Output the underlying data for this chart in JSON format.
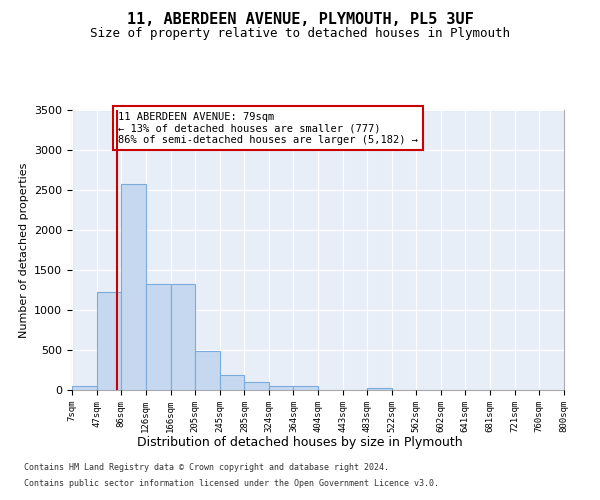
{
  "title": "11, ABERDEEN AVENUE, PLYMOUTH, PL5 3UF",
  "subtitle": "Size of property relative to detached houses in Plymouth",
  "xlabel": "Distribution of detached houses by size in Plymouth",
  "ylabel": "Number of detached properties",
  "bin_edges": [
    7,
    47,
    86,
    126,
    166,
    205,
    245,
    285,
    324,
    364,
    404,
    443,
    483,
    522,
    562,
    602,
    641,
    681,
    721,
    760,
    800
  ],
  "bar_heights": [
    50,
    1220,
    2570,
    1320,
    1320,
    490,
    185,
    100,
    50,
    50,
    0,
    0,
    30,
    0,
    0,
    0,
    0,
    0,
    0,
    0
  ],
  "bar_color": "#c5d8f0",
  "bar_edgecolor": "#7aabdb",
  "property_size": 79,
  "vline_color": "#cc0000",
  "annotation_text": "11 ABERDEEN AVENUE: 79sqm\n← 13% of detached houses are smaller (777)\n86% of semi-detached houses are larger (5,182) →",
  "annotation_box_color": "#cc0000",
  "ylim": [
    0,
    3500
  ],
  "yticks": [
    0,
    500,
    1000,
    1500,
    2000,
    2500,
    3000,
    3500
  ],
  "bg_color": "#e8eef8",
  "grid_color": "#ffffff",
  "footer_line1": "Contains HM Land Registry data © Crown copyright and database right 2024.",
  "footer_line2": "Contains public sector information licensed under the Open Government Licence v3.0."
}
